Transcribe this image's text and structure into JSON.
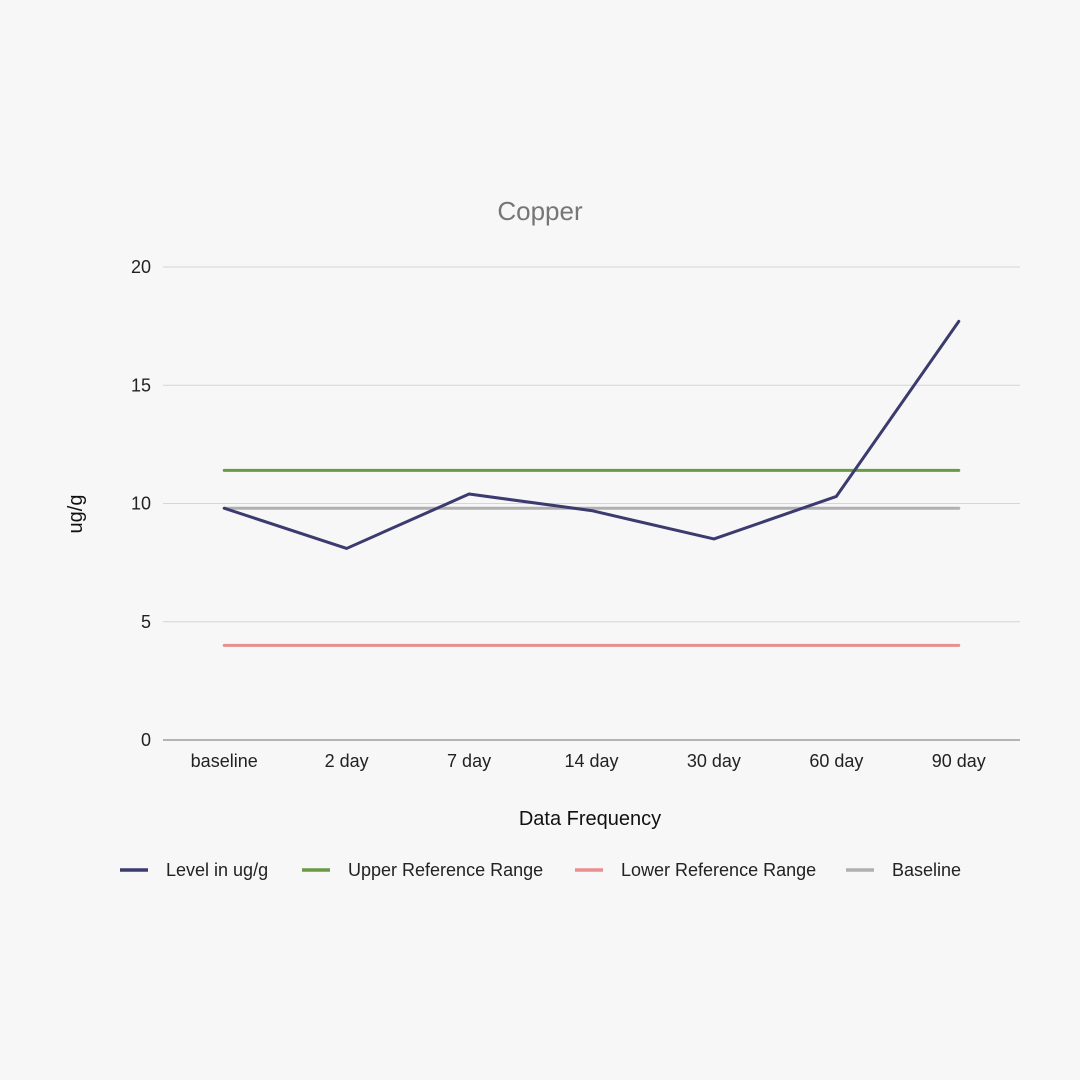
{
  "chart_data": {
    "type": "line",
    "title": "Copper",
    "xlabel": "Data Frequency",
    "ylabel": "ug/g",
    "categories": [
      "baseline",
      "2 day",
      "7 day",
      "14 day",
      "30 day",
      "60 day",
      "90 day"
    ],
    "ylim": [
      0,
      20
    ],
    "yticks": [
      0,
      5,
      10,
      15,
      20
    ],
    "grid": true,
    "legend_position": "bottom",
    "series": [
      {
        "name": "Level in ug/g",
        "color": "#3b3b6f",
        "values": [
          9.8,
          8.1,
          10.4,
          9.7,
          8.5,
          10.3,
          17.7
        ]
      },
      {
        "name": "Upper Reference Range",
        "color": "#6a9a44",
        "values": [
          11.4,
          11.4,
          11.4,
          11.4,
          11.4,
          11.4,
          11.4
        ]
      },
      {
        "name": "Lower Reference Range",
        "color": "#e88f8f",
        "values": [
          4,
          4,
          4,
          4,
          4,
          4,
          4
        ]
      },
      {
        "name": "Baseline",
        "color": "#b0b0b0",
        "values": [
          9.8,
          9.8,
          9.8,
          9.8,
          9.8,
          9.8,
          9.8
        ]
      }
    ]
  }
}
